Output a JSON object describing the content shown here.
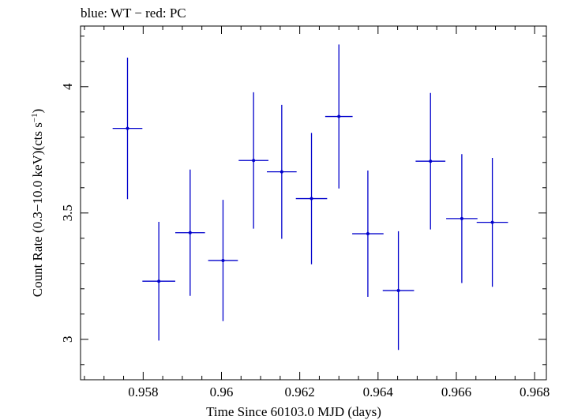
{
  "chart_data": {
    "type": "scatter",
    "title": "blue: WT − red: PC",
    "xlabel": "Time Since 60103.0 MJD (days)",
    "ylabel_main": "Count Rate (0.3−10.0 keV)(cts s",
    "ylabel_sup": "−1",
    "ylabel_close": ")",
    "xlim": [
      0.9564,
      0.9683
    ],
    "ylim": [
      2.84,
      4.24
    ],
    "x_ticks": [
      0.958,
      0.96,
      0.962,
      0.964,
      0.966,
      0.968
    ],
    "x_tick_labels": [
      "0.958",
      "0.96",
      "0.962",
      "0.964",
      "0.966",
      "0.968"
    ],
    "y_ticks": [
      3.0,
      3.5,
      4.0
    ],
    "y_tick_labels": [
      "3",
      "3.5",
      "4"
    ],
    "grid": false,
    "series": [
      {
        "color": "#0000cc",
        "points": [
          {
            "x": 0.9576,
            "xerr": 0.00038,
            "y": 3.835,
            "yerr": 0.28
          },
          {
            "x": 0.9584,
            "xerr": 0.00042,
            "y": 3.23,
            "yerr": 0.235
          },
          {
            "x": 0.9592,
            "xerr": 0.00038,
            "y": 3.422,
            "yerr": 0.25
          },
          {
            "x": 0.96004,
            "xerr": 0.00038,
            "y": 3.312,
            "yerr": 0.24
          },
          {
            "x": 0.96082,
            "xerr": 0.00038,
            "y": 3.708,
            "yerr": 0.27
          },
          {
            "x": 0.96154,
            "xerr": 0.00038,
            "y": 3.663,
            "yerr": 0.265
          },
          {
            "x": 0.9623,
            "xerr": 0.0004,
            "y": 3.557,
            "yerr": 0.26
          },
          {
            "x": 0.963,
            "xerr": 0.00035,
            "y": 3.882,
            "yerr": 0.285
          },
          {
            "x": 0.96374,
            "xerr": 0.0004,
            "y": 3.418,
            "yerr": 0.25
          },
          {
            "x": 0.96452,
            "xerr": 0.0004,
            "y": 3.193,
            "yerr": 0.235
          },
          {
            "x": 0.96534,
            "xerr": 0.00038,
            "y": 3.705,
            "yerr": 0.27
          },
          {
            "x": 0.96614,
            "xerr": 0.0004,
            "y": 3.478,
            "yerr": 0.255
          },
          {
            "x": 0.96692,
            "xerr": 0.0004,
            "y": 3.463,
            "yerr": 0.255
          }
        ]
      }
    ]
  }
}
